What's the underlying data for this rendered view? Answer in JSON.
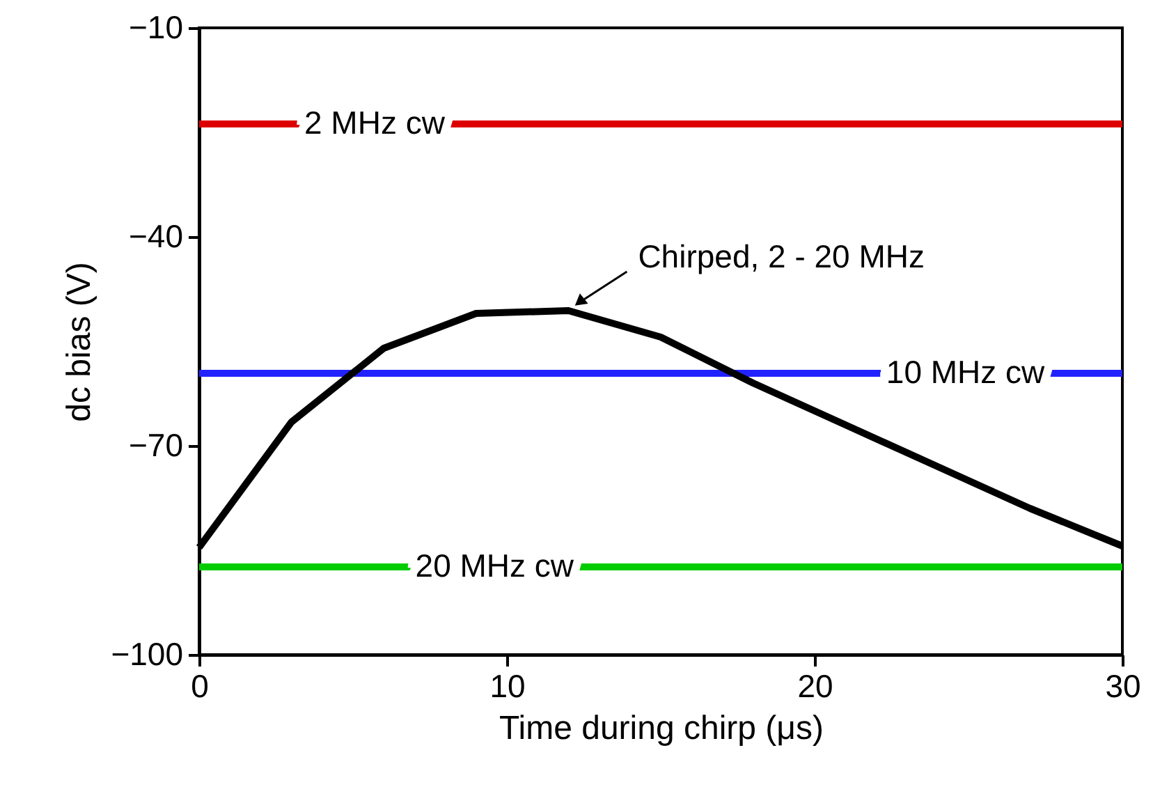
{
  "chart_data": {
    "type": "line",
    "xlabel": "Time during chirp (μs)",
    "ylabel": "dc bias (V)",
    "xlim": [
      0,
      30
    ],
    "xticks": [
      0,
      10,
      20,
      30
    ],
    "ylim": [
      -100,
      -10
    ],
    "yticks": [
      -100,
      -70,
      -40,
      -10
    ],
    "grid": false,
    "legend": false,
    "series": [
      {
        "name": "2 MHz cw",
        "color": "#dd0000",
        "x": [
          0,
          30
        ],
        "values": [
          -23.8,
          -23.8
        ]
      },
      {
        "name": "10 MHz cw",
        "color": "#2222ff",
        "x": [
          0,
          30
        ],
        "values": [
          -59.6,
          -59.6
        ]
      },
      {
        "name": "20 MHz cw",
        "color": "#00cc00",
        "x": [
          0,
          30
        ],
        "values": [
          -87.4,
          -87.4
        ]
      },
      {
        "color": "#000000",
        "x": [
          0,
          3,
          6,
          9,
          12,
          15,
          18,
          21,
          24,
          27,
          30
        ],
        "values": [
          -84.6,
          -66.6,
          -56,
          -51,
          -50.6,
          -54.4,
          -61,
          -67,
          -73,
          -79,
          -84.4
        ]
      }
    ],
    "annotations": [
      {
        "text": "Chirped, 2 - 20 MHz",
        "x": 12,
        "y": -50.6
      }
    ]
  }
}
